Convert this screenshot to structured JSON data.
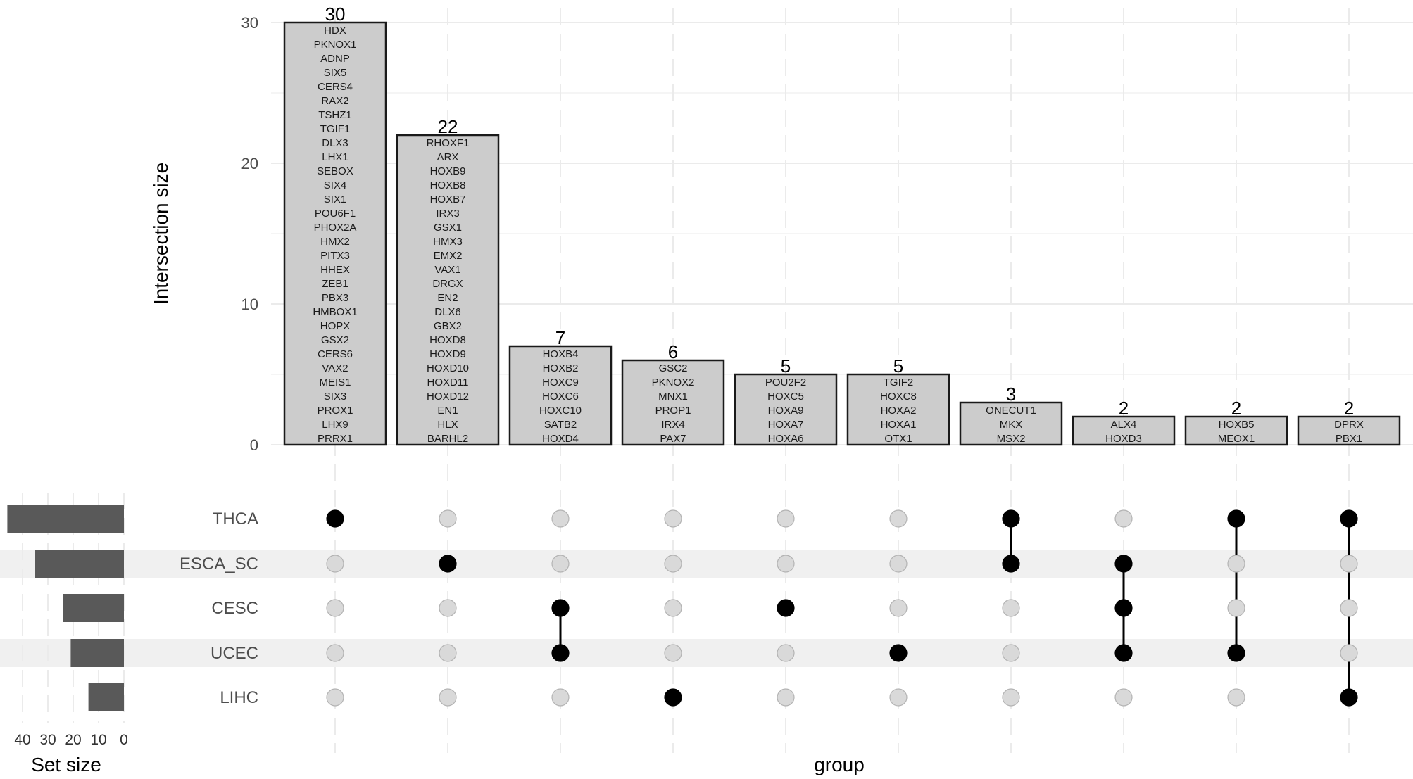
{
  "chart_data": {
    "type": "upset",
    "intersection_axis": {
      "label": "Intersection size",
      "ticks": [
        0,
        10,
        20,
        30
      ],
      "range": [
        0,
        30
      ]
    },
    "x_axis_label": "group",
    "set_size_axis": {
      "label": "Set size",
      "ticks": [
        40,
        30,
        20,
        10,
        0
      ],
      "range": [
        0,
        50
      ]
    },
    "sets": [
      {
        "name": "THCA",
        "size": 46
      },
      {
        "name": "ESCA_SC",
        "size": 35
      },
      {
        "name": "CESC",
        "size": 24
      },
      {
        "name": "UCEC",
        "size": 21
      },
      {
        "name": "LIHC",
        "size": 14
      }
    ],
    "intersections": [
      {
        "count": 30,
        "label": "30",
        "sets": [
          "THCA"
        ],
        "genes": [
          "HDX",
          "PKNOX1",
          "ADNP",
          "SIX5",
          "CERS4",
          "RAX2",
          "TSHZ1",
          "TGIF1",
          "DLX3",
          "LHX1",
          "SEBOX",
          "SIX4",
          "SIX1",
          "POU6F1",
          "PHOX2A",
          "HMX2",
          "PITX3",
          "HHEX",
          "ZEB1",
          "PBX3",
          "HMBOX1",
          "HOPX",
          "GSX2",
          "CERS6",
          "VAX2",
          "MEIS1",
          "SIX3",
          "PROX1",
          "LHX9",
          "PRRX1"
        ]
      },
      {
        "count": 22,
        "label": "22",
        "sets": [
          "ESCA_SC"
        ],
        "genes": [
          "RHOXF1",
          "ARX",
          "HOXB9",
          "HOXB8",
          "HOXB7",
          "IRX3",
          "GSX1",
          "HMX3",
          "EMX2",
          "VAX1",
          "DRGX",
          "EN2",
          "DLX6",
          "GBX2",
          "HOXD8",
          "HOXD9",
          "HOXD10",
          "HOXD11",
          "HOXD12",
          "EN1",
          "HLX",
          "BARHL2"
        ]
      },
      {
        "count": 7,
        "label": "7",
        "sets": [
          "CESC",
          "UCEC"
        ],
        "genes": [
          "HOXB4",
          "HOXB2",
          "HOXC9",
          "HOXC6",
          "HOXC10",
          "SATB2",
          "HOXD4"
        ]
      },
      {
        "count": 6,
        "label": "6",
        "sets": [
          "LIHC"
        ],
        "genes": [
          "GSC2",
          "PKNOX2",
          "MNX1",
          "PROP1",
          "IRX4",
          "PAX7"
        ]
      },
      {
        "count": 5,
        "label": "5",
        "sets": [
          "CESC"
        ],
        "genes": [
          "POU2F2",
          "HOXC5",
          "HOXA9",
          "HOXA7",
          "HOXA6"
        ]
      },
      {
        "count": 5,
        "label": "5",
        "sets": [
          "UCEC"
        ],
        "genes": [
          "TGIF2",
          "HOXC8",
          "HOXA2",
          "HOXA1",
          "OTX1"
        ]
      },
      {
        "count": 3,
        "label": "3",
        "sets": [
          "THCA",
          "ESCA_SC"
        ],
        "genes": [
          "ONECUT1",
          "MKX",
          "MSX2"
        ]
      },
      {
        "count": 2,
        "label": "2",
        "sets": [
          "ESCA_SC",
          "CESC",
          "UCEC"
        ],
        "genes": [
          "ALX4",
          "HOXD3"
        ]
      },
      {
        "count": 2,
        "label": "2",
        "sets": [
          "THCA",
          "UCEC"
        ],
        "genes": [
          "HOXB5",
          "MEOX1"
        ]
      },
      {
        "count": 2,
        "label": "2",
        "sets": [
          "THCA",
          "LIHC"
        ],
        "genes": [
          "DPRX",
          "PBX1"
        ]
      }
    ],
    "colors": {
      "bar_fill": "#cccccc",
      "bar_stroke": "#1a1a1a",
      "set_bar_fill": "#595959",
      "dot_active": "#000000",
      "dot_inactive": "#d9d9d9",
      "dot_inactive_stroke": "#b3b3b3",
      "stripe": "#f0f0f0",
      "grid": "#ebebeb"
    }
  }
}
